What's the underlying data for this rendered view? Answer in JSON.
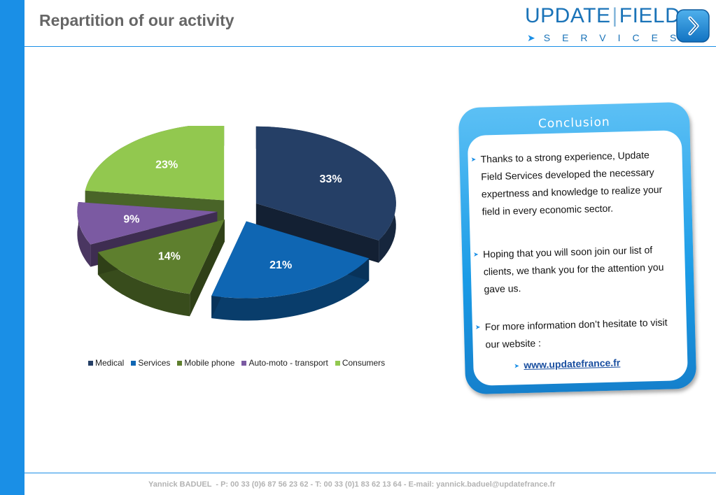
{
  "title": "Repartition of our activity",
  "logo": {
    "word1": "UPDATE",
    "word2": "FIELD",
    "tagline": "SERVICES"
  },
  "chart_data": {
    "type": "pie",
    "categories": [
      "Medical",
      "Services",
      "Mobile phone",
      "Auto-moto - transport",
      "Consumers"
    ],
    "values": [
      33,
      21,
      14,
      9,
      23
    ],
    "labels": [
      "33%",
      "21%",
      "14%",
      "9%",
      "23%"
    ],
    "colors": [
      "#253f66",
      "#0f66b3",
      "#5e7f2e",
      "#7b5aa2",
      "#92c84f"
    ],
    "legend_position": "bottom"
  },
  "conclusion": {
    "title": "Conclusion",
    "bullets": [
      "Thanks to a strong experience, Update Field Services developed the necessary expertness and knowledge to realize your field in every economic sector.",
      "Hoping that you will soon join our list of clients, we thank you for the attention you gave us.",
      "For more information don’t hesitate to visit our website :"
    ],
    "link": "www.updatefrance.fr"
  },
  "footer": "Yannick BADUEL  - P: 00 33 (0)6 87 56 23 62 - T: 00 33 (0)1 83 62 13 64 - E-mail: yannick.baduel@updatefrance.fr"
}
